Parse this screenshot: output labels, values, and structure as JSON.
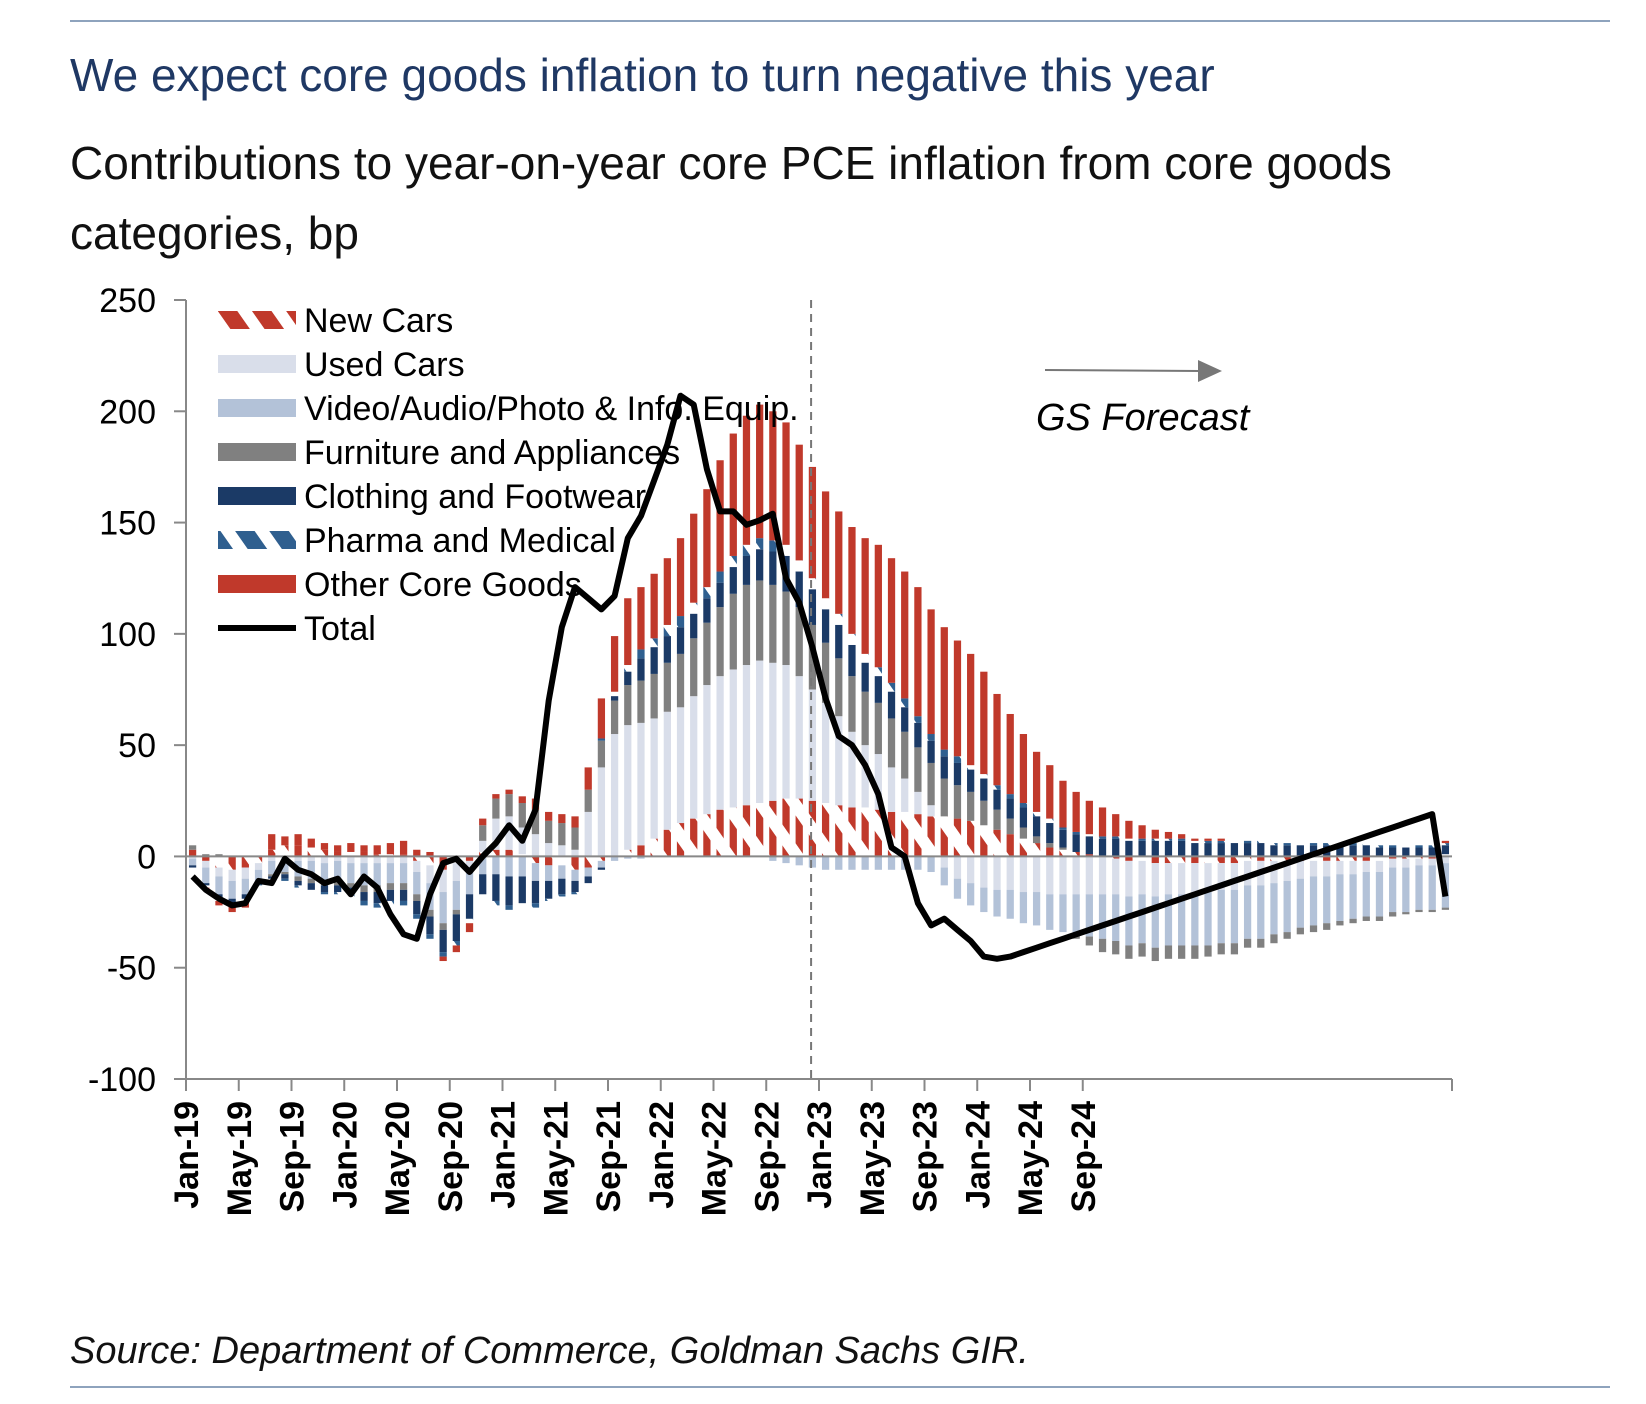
{
  "header": {
    "title": "We expect core goods inflation to turn negative this year",
    "subtitle": "Contributions to year-on-year core PCE inflation from core goods categories, bp"
  },
  "footer": {
    "source": "Source: Department of Commerce, Goldman Sachs GIR."
  },
  "chart_data": {
    "type": "bar",
    "stacked": true,
    "title": "We expect core goods inflation to turn negative this year",
    "subtitle": "Contributions to year-on-year core PCE inflation from core goods categories, bp",
    "xlabel": "",
    "ylabel": "",
    "ylim": [
      -100,
      250
    ],
    "yticks": [
      "250",
      "200",
      "150",
      "100",
      "50",
      "0",
      "-50",
      "-100"
    ],
    "ytick_values": [
      250,
      200,
      150,
      100,
      50,
      0,
      -50,
      -100
    ],
    "xtick_labels": [
      "Jan-19",
      "May-19",
      "Sep-19",
      "Jan-20",
      "May-20",
      "Sep-20",
      "Jan-21",
      "May-21",
      "Sep-21",
      "Jan-22",
      "May-22",
      "Sep-22",
      "Jan-23",
      "May-23",
      "Sep-23",
      "Jan-24",
      "May-24",
      "Sep-24"
    ],
    "x_start": "Jan-19",
    "x_end": "Dec-24",
    "grid": false,
    "legend_position": "top-left",
    "annotation": {
      "label": "GS Forecast",
      "forecast_start": "Dec-22",
      "divider_style": "dashed"
    },
    "colors": {
      "new_cars": "#c0392b",
      "used_cars": "#d9deea",
      "video_audio": "#b3c2d8",
      "furniture": "#808080",
      "clothing": "#1b3a66",
      "pharma": "#2f5f8f",
      "other": "#c0392b",
      "total": "#000000"
    },
    "series": [
      {
        "name": "New Cars",
        "key": "new_cars",
        "pattern": "dashed",
        "values": [
          3,
          -2,
          -5,
          -6,
          -5,
          -3,
          3,
          5,
          5,
          4,
          3,
          2,
          2,
          2,
          1,
          1,
          1,
          -2,
          -4,
          -6,
          -3,
          -2,
          2,
          3,
          3,
          1,
          -3,
          -4,
          -4,
          -6,
          -5,
          -2,
          0,
          3,
          5,
          8,
          12,
          15,
          17,
          19,
          21,
          22,
          23,
          24,
          25,
          26,
          26,
          25,
          24,
          23,
          22,
          22,
          21,
          20,
          20,
          19,
          18,
          18,
          17,
          16,
          14,
          12,
          10,
          8,
          6,
          4,
          3,
          2,
          1,
          0,
          -1,
          -2,
          -2,
          -3,
          -3,
          -3,
          -3,
          -3,
          -3,
          -3,
          -2,
          -2,
          -2,
          -2,
          -2,
          -2,
          -2,
          -2,
          -2,
          -2,
          -2,
          -1,
          -1,
          -1,
          -1,
          1
        ]
      },
      {
        "name": "Used Cars",
        "key": "used_cars",
        "values": [
          -1,
          -3,
          -4,
          -5,
          -5,
          -3,
          -2,
          -1,
          -2,
          -2,
          -3,
          -2,
          -3,
          -3,
          -3,
          -3,
          -3,
          -5,
          -8,
          -10,
          -8,
          -5,
          5,
          14,
          15,
          12,
          10,
          6,
          5,
          3,
          20,
          40,
          55,
          56,
          55,
          54,
          53,
          52,
          55,
          58,
          60,
          62,
          63,
          64,
          62,
          60,
          55,
          50,
          45,
          40,
          34,
          28,
          25,
          20,
          15,
          10,
          5,
          -5,
          -10,
          -12,
          -14,
          -15,
          -15,
          -16,
          -16,
          -17,
          -17,
          -17,
          -17,
          -17,
          -16,
          -16,
          -15,
          -15,
          -14,
          -14,
          -13,
          -13,
          -12,
          -12,
          -11,
          -11,
          -10,
          -9,
          -8,
          -7,
          -7,
          -6,
          -6,
          -5,
          -5,
          -4,
          -4,
          -3,
          -3,
          -3
        ]
      },
      {
        "name": "Video/Audio/Photo & Info. Equip.",
        "key": "video_audio",
        "values": [
          -3,
          -7,
          -8,
          -8,
          -7,
          -5,
          -6,
          -6,
          -7,
          -8,
          -8,
          -9,
          -9,
          -10,
          -10,
          -9,
          -9,
          -10,
          -12,
          -14,
          -13,
          -10,
          -8,
          -8,
          -9,
          -9,
          -8,
          -7,
          -6,
          -5,
          -4,
          -3,
          -2,
          -1,
          -1,
          0,
          0,
          0,
          0,
          0,
          0,
          0,
          0,
          0,
          -2,
          -3,
          -4,
          -5,
          -6,
          -6,
          -6,
          -6,
          -6,
          -6,
          -6,
          -6,
          -7,
          -8,
          -9,
          -10,
          -11,
          -12,
          -13,
          -14,
          -15,
          -16,
          -17,
          -18,
          -19,
          -20,
          -21,
          -22,
          -22,
          -23,
          -23,
          -23,
          -24,
          -24,
          -24,
          -24,
          -24,
          -24,
          -23,
          -23,
          -22,
          -22,
          -21,
          -21,
          -20,
          -20,
          -20,
          -20,
          -20,
          -20,
          -20,
          -20
        ]
      },
      {
        "name": "Furniture and Appliances",
        "key": "furniture",
        "values": [
          2,
          1,
          1,
          0,
          0,
          0,
          -1,
          -1,
          -2,
          -2,
          -2,
          -2,
          -2,
          -3,
          -3,
          -3,
          -3,
          -3,
          -3,
          -3,
          -2,
          0,
          7,
          9,
          10,
          11,
          11,
          10,
          10,
          10,
          10,
          12,
          15,
          18,
          19,
          20,
          22,
          24,
          26,
          28,
          31,
          34,
          36,
          36,
          35,
          33,
          31,
          29,
          27,
          26,
          25,
          24,
          23,
          22,
          21,
          20,
          19,
          17,
          15,
          13,
          11,
          9,
          7,
          5,
          3,
          2,
          1,
          -2,
          -4,
          -6,
          -6,
          -6,
          -6,
          -6,
          -6,
          -6,
          -6,
          -5,
          -5,
          -5,
          -4,
          -4,
          -4,
          -3,
          -3,
          -3,
          -3,
          -2,
          -2,
          -2,
          -2,
          -2,
          -1,
          -1,
          -1,
          -1
        ]
      },
      {
        "name": "Clothing and Footwear",
        "key": "clothing",
        "values": [
          -1,
          -1,
          -2,
          -2,
          -2,
          -1,
          -1,
          -2,
          -2,
          -3,
          -3,
          -3,
          -3,
          -4,
          -5,
          -5,
          -5,
          -6,
          -8,
          -10,
          -12,
          -11,
          -9,
          -12,
          -13,
          -12,
          -10,
          -8,
          -7,
          -5,
          -3,
          -1,
          2,
          6,
          10,
          12,
          12,
          12,
          11,
          11,
          11,
          12,
          13,
          14,
          15,
          16,
          16,
          16,
          15,
          15,
          14,
          13,
          12,
          12,
          11,
          11,
          10,
          10,
          10,
          10,
          10,
          9,
          9,
          9,
          9,
          9,
          8,
          8,
          8,
          8,
          8,
          7,
          7,
          7,
          7,
          7,
          6,
          6,
          6,
          6,
          6,
          6,
          5,
          5,
          5,
          5,
          5,
          5,
          5,
          5,
          4,
          4,
          4,
          4,
          4,
          4
        ]
      },
      {
        "name": "Pharma and Medical",
        "key": "pharma",
        "pattern": "dashed",
        "values": [
          -1,
          -1,
          -1,
          -1,
          -1,
          -1,
          -1,
          -1,
          -1,
          -1,
          -1,
          -1,
          -1,
          -2,
          -2,
          -2,
          -2,
          -2,
          -2,
          -2,
          -2,
          -2,
          -2,
          -2,
          -2,
          -2,
          -2,
          -1,
          -1,
          -1,
          0,
          1,
          2,
          3,
          4,
          4,
          5,
          5,
          5,
          5,
          5,
          5,
          5,
          5,
          5,
          5,
          5,
          5,
          5,
          5,
          5,
          4,
          4,
          4,
          4,
          3,
          3,
          3,
          3,
          2,
          2,
          2,
          2,
          2,
          2,
          2,
          1,
          1,
          1,
          1,
          1,
          1,
          1,
          1,
          1,
          1,
          1,
          1,
          1,
          1,
          1,
          1,
          1,
          1,
          1,
          1,
          1,
          1,
          1,
          1,
          1,
          1,
          1,
          1,
          1,
          1
        ]
      },
      {
        "name": "Other Core Goods",
        "key": "other",
        "values": [
          0,
          -1,
          -2,
          -3,
          -3,
          0,
          7,
          4,
          5,
          4,
          3,
          3,
          4,
          3,
          4,
          5,
          6,
          3,
          2,
          -2,
          -3,
          -4,
          3,
          2,
          2,
          3,
          5,
          4,
          4,
          5,
          10,
          18,
          25,
          30,
          28,
          29,
          30,
          35,
          40,
          44,
          50,
          55,
          58,
          60,
          58,
          55,
          52,
          50,
          48,
          46,
          48,
          52,
          55,
          56,
          57,
          58,
          56,
          55,
          52,
          50,
          46,
          41,
          36,
          31,
          27,
          24,
          21,
          18,
          15,
          13,
          10,
          8,
          6,
          4,
          3,
          2,
          1,
          1,
          1,
          0,
          0,
          0,
          0,
          0,
          0,
          0,
          0,
          0,
          0,
          0,
          0,
          0,
          0,
          0,
          0,
          1
        ]
      },
      {
        "name": "Total",
        "key": "total",
        "type": "line",
        "values": [
          -9,
          -15,
          -19,
          -22,
          -21,
          -11,
          -12,
          -1,
          -6,
          -8,
          -12,
          -10,
          -17,
          -9,
          -14,
          -26,
          -35,
          -37,
          -17,
          -3,
          -1,
          -7,
          0,
          6,
          14,
          7,
          21,
          70,
          103,
          121,
          116,
          111,
          117,
          143,
          153,
          169,
          185,
          207,
          203,
          174,
          155,
          155,
          149,
          151,
          154,
          125,
          114,
          94,
          71,
          54,
          50,
          41,
          28,
          4,
          0,
          -21,
          -31,
          -28,
          -33,
          -38,
          -45,
          -46,
          -45,
          -43,
          -41,
          -39,
          -37,
          -35,
          -33,
          -31,
          -29,
          -27,
          -25,
          -23,
          -21,
          -19,
          -17,
          -15,
          -13,
          -11,
          -9,
          -7,
          -5,
          -3,
          -1,
          1,
          3,
          5,
          7,
          9,
          11,
          13,
          15,
          17,
          19,
          -18
        ]
      }
    ]
  }
}
